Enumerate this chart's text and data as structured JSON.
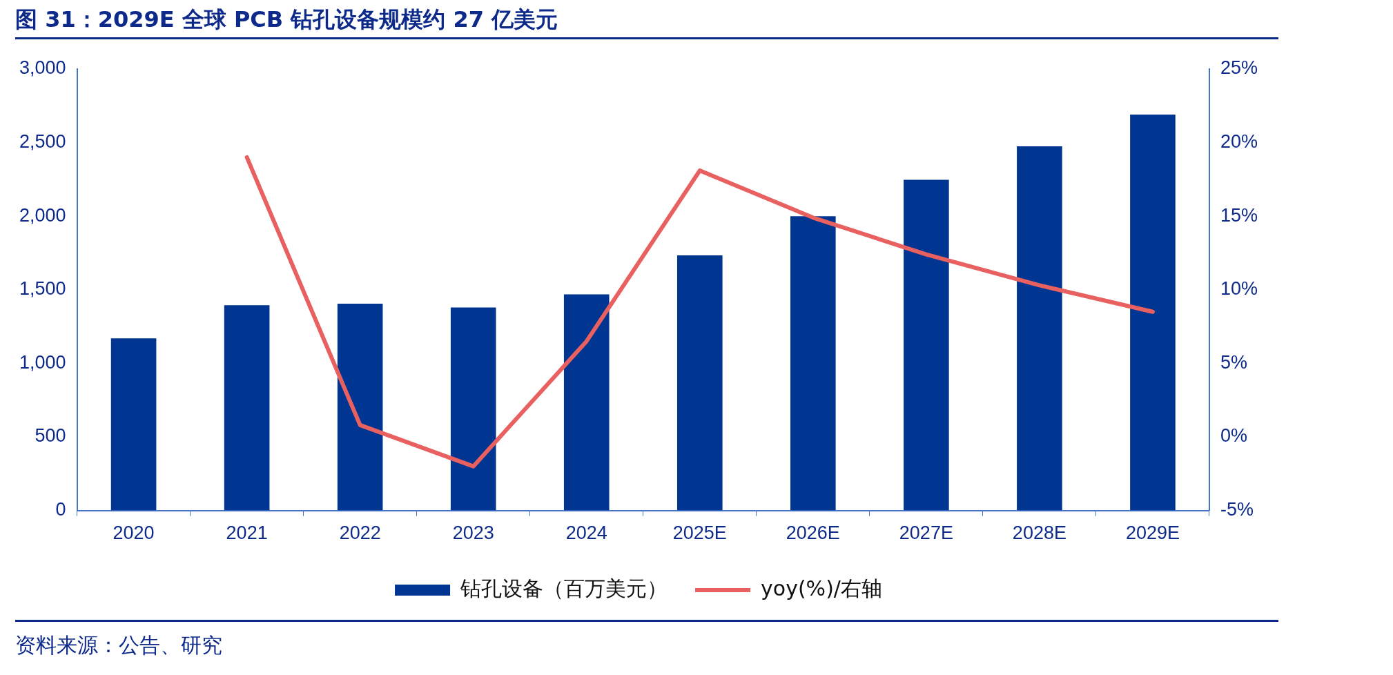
{
  "chart_data": {
    "type": "bar",
    "title": "图 31：2029E 全球 PCB 钻孔设备规模约 27 亿美元",
    "categories": [
      "2020",
      "2021",
      "2022",
      "2023",
      "2024",
      "2025E",
      "2026E",
      "2027E",
      "2028E",
      "2029E"
    ],
    "series": [
      {
        "name": "钻孔设备（百万美元）",
        "type": "bar",
        "color": "#003591",
        "values": [
          1170,
          1395,
          1405,
          1380,
          1468,
          1734,
          2000,
          2247,
          2475,
          2690
        ]
      },
      {
        "name": "yoy(%)/右轴",
        "type": "line",
        "axis": "y2",
        "color": "#e8605f",
        "values": [
          null,
          19.0,
          0.8,
          -2.0,
          6.5,
          18.1,
          14.9,
          12.4,
          10.3,
          8.5
        ]
      }
    ],
    "ylim": [
      0,
      3000
    ],
    "yticks": [
      0,
      {
        "value": 500,
        "label": "500"
      },
      {
        "value": 1000,
        "label": "1,000"
      },
      {
        "value": 1500,
        "label": "1,500"
      },
      {
        "value": 2000,
        "label": "2,000"
      },
      {
        "value": 2500,
        "label": "2,500"
      },
      {
        "value": 3000,
        "label": "3,000"
      }
    ],
    "y2lim": [
      -5,
      25
    ],
    "y2ticks": [
      {
        "value": -5,
        "label": "-5%"
      },
      {
        "value": 0,
        "label": "0%"
      },
      {
        "value": 5,
        "label": "5%"
      },
      {
        "value": 10,
        "label": "10%"
      },
      {
        "value": 15,
        "label": "15%"
      },
      {
        "value": 20,
        "label": "20%"
      },
      {
        "value": 25,
        "label": "25%"
      }
    ],
    "grid": false,
    "legend": "bottom",
    "marker": "none",
    "line_style": "solid",
    "annotations": [
      "资料来源：公告、研究"
    ]
  }
}
